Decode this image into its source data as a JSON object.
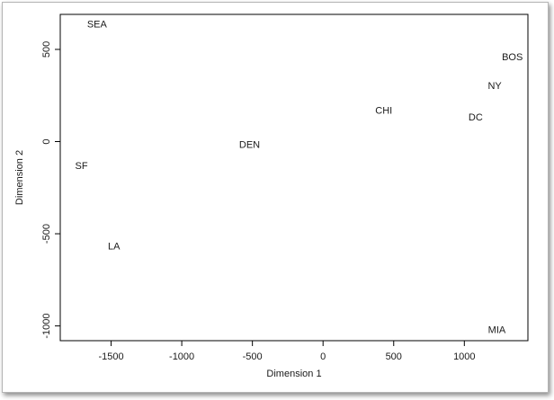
{
  "chart_data": {
    "type": "scatter",
    "marker": "text-labels",
    "title": "",
    "xlabel": "Dimension 1",
    "ylabel": "Dimension 2",
    "xlim": [
      -1860,
      1450
    ],
    "ylim": [
      -1080,
      690
    ],
    "x_ticks": [
      -1500,
      -1000,
      -500,
      0,
      500,
      1000
    ],
    "y_ticks": [
      -1000,
      -500,
      0,
      500
    ],
    "grid": false,
    "legend": "none",
    "points": [
      {
        "label": "SEA",
        "x": -1600,
        "y": 640
      },
      {
        "label": "BOS",
        "x": 1340,
        "y": 460
      },
      {
        "label": "NY",
        "x": 1215,
        "y": 305
      },
      {
        "label": "CHI",
        "x": 430,
        "y": 170
      },
      {
        "label": "DC",
        "x": 1080,
        "y": 135
      },
      {
        "label": "DEN",
        "x": -520,
        "y": -15
      },
      {
        "label": "SF",
        "x": -1710,
        "y": -130
      },
      {
        "label": "LA",
        "x": -1480,
        "y": -565
      },
      {
        "label": "MIA",
        "x": 1230,
        "y": -1020
      }
    ]
  }
}
